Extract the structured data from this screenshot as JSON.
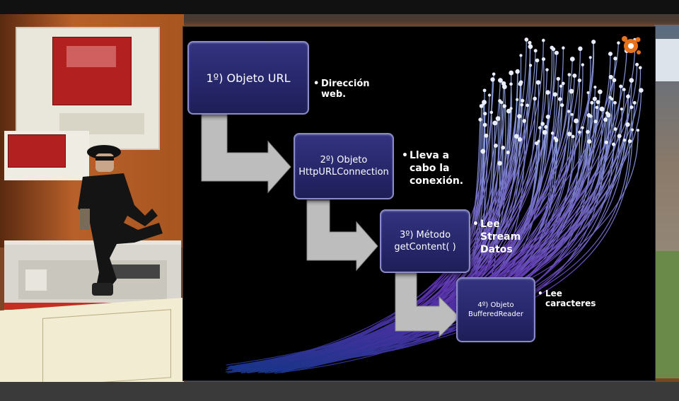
{
  "slide": {
    "steps": [
      {
        "lines": [
          "1º) Objeto URL"
        ],
        "note": [
          "Dirección",
          "web."
        ]
      },
      {
        "lines": [
          "2º) Objeto",
          "HttpURLConnection"
        ],
        "note": [
          "Lleva a",
          "cabo la",
          "conexión."
        ]
      },
      {
        "lines": [
          "3º) Método",
          "getContent( )"
        ],
        "note": [
          "Lee",
          "Stream",
          "Datos"
        ]
      },
      {
        "lines": [
          "4º) Objeto",
          "BufferedReader"
        ],
        "note": [
          "Lee",
          "caracteres"
        ]
      }
    ],
    "bullet_char": "•"
  },
  "colors": {
    "box_fill": "#2a2a70",
    "box_border": "#8a8ac8",
    "arrow": "#bdbdbd",
    "slide_bg": "#000000",
    "fiber_light": "#c8d6ff",
    "fiber_mid": "#7a3fd0",
    "fiber_dark": "#2a4fb0"
  },
  "icons": {
    "logo": "orange-molecule-logo"
  }
}
